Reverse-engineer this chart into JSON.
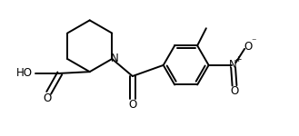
{
  "bg_color": "#ffffff",
  "line_color": "#000000",
  "line_width": 1.4,
  "font_size": 8.5,
  "fig_width": 3.29,
  "fig_height": 1.5,
  "dpi": 100,
  "xlim": [
    0,
    9.5
  ],
  "ylim": [
    0,
    4.2
  ]
}
